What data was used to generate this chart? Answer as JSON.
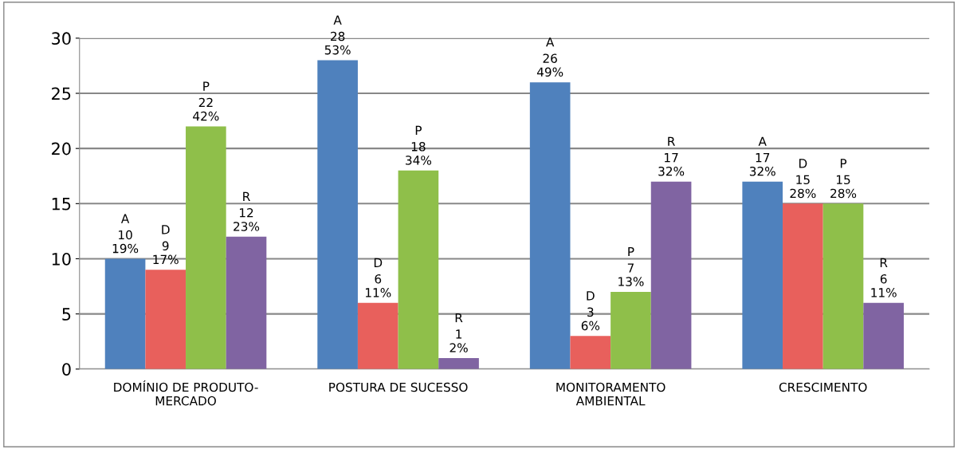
{
  "chart_data": {
    "type": "bar",
    "categories": [
      "DOMÍNIO DE PRODUTO-\nMERCADO",
      "POSTURA DE SUCESSO",
      "MONITORAMENTO\nAMBIENTAL",
      "CRESCIMENTO"
    ],
    "series": [
      {
        "name": "A",
        "color": "#4f81bd",
        "values": [
          10,
          28,
          26,
          17
        ],
        "value_labels": [
          "10\n19%",
          "28\n53%",
          "26\n49%",
          "17\n32%"
        ]
      },
      {
        "name": "D",
        "color": "#e8605c",
        "values": [
          9,
          6,
          3,
          15
        ],
        "value_labels": [
          "9\n17%",
          "6\n11%",
          "3\n6%",
          "15\n28%"
        ]
      },
      {
        "name": "P",
        "color": "#8fbf4a",
        "values": [
          22,
          18,
          7,
          15
        ],
        "value_labels": [
          "22\n42%",
          "18\n34%",
          "7\n13%",
          "15\n28%"
        ]
      },
      {
        "name": "R",
        "color": "#8064a2",
        "values": [
          12,
          1,
          17,
          6
        ],
        "value_labels": [
          "12\n23%",
          "1\n2%",
          "17\n32%",
          "6\n11%"
        ]
      }
    ],
    "ylim": [
      0,
      30
    ],
    "yticks": [
      0,
      5,
      10,
      15,
      20,
      25,
      30
    ],
    "grid": "y",
    "legend": false
  }
}
